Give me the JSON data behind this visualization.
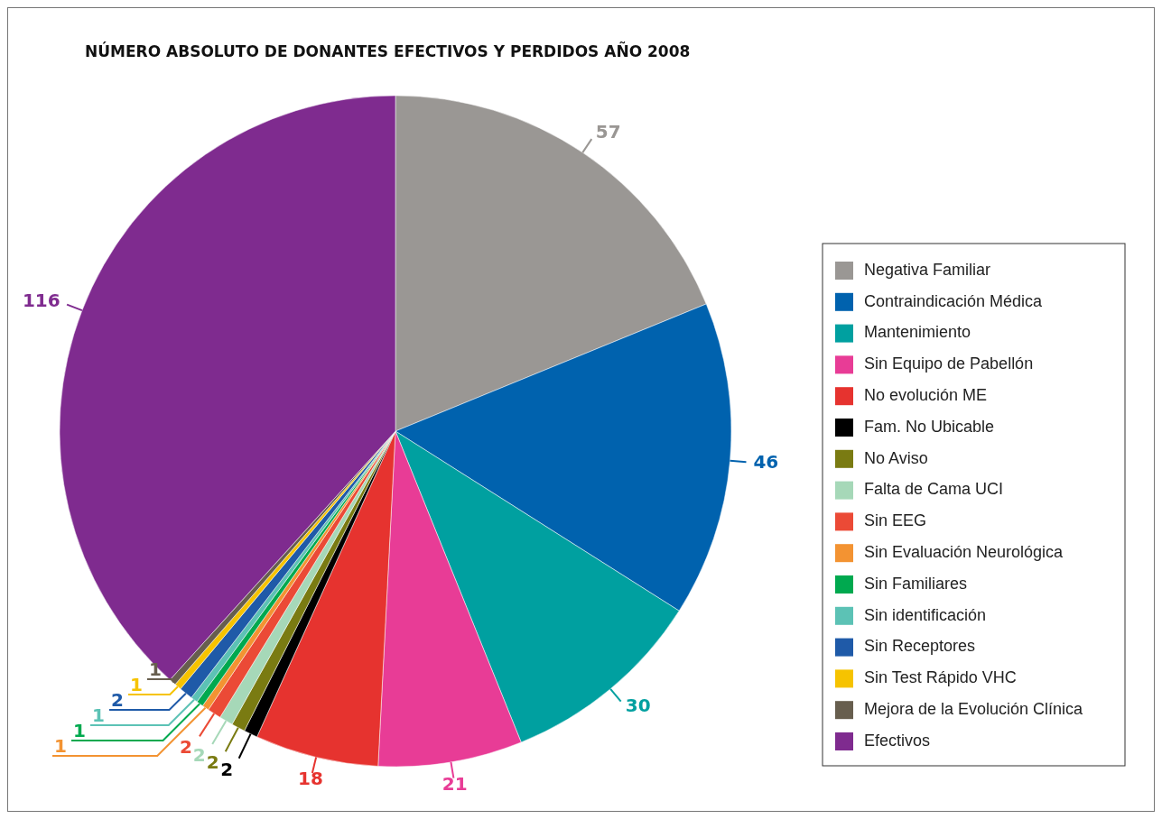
{
  "chart_data": {
    "type": "pie",
    "title": "NÚMERO ABSOLUTO DE DONANTES EFECTIVOS Y PERDIDOS AÑO 2008",
    "categories": [
      "Negativa Familiar",
      "Contraindicación Médica",
      "Mantenimiento",
      "Sin Equipo de Pabellón",
      "No evolución ME",
      "Fam. No Ubicable",
      "No Aviso",
      "Falta de Cama UCI",
      "Sin EEG",
      "Sin Evaluación Neurológica",
      "Sin Familiares",
      "Sin identificación",
      "Sin Receptores",
      "Sin Test Rápido VHC",
      "Mejora de la Evolución Clínica",
      "Efectivos"
    ],
    "values": [
      57,
      46,
      30,
      21,
      18,
      2,
      2,
      2,
      2,
      1,
      1,
      1,
      2,
      1,
      1,
      116
    ],
    "colors": [
      "#9a9794",
      "#0062ae",
      "#00a0a0",
      "#e83c96",
      "#e6332f",
      "#000000",
      "#7a7b12",
      "#a6d8b8",
      "#eb4a36",
      "#f39332",
      "#00a94f",
      "#5cc2b5",
      "#1f5aa8",
      "#f6c300",
      "#675e4e",
      "#7f2b8f"
    ],
    "data_labels": true,
    "legend": "right"
  }
}
